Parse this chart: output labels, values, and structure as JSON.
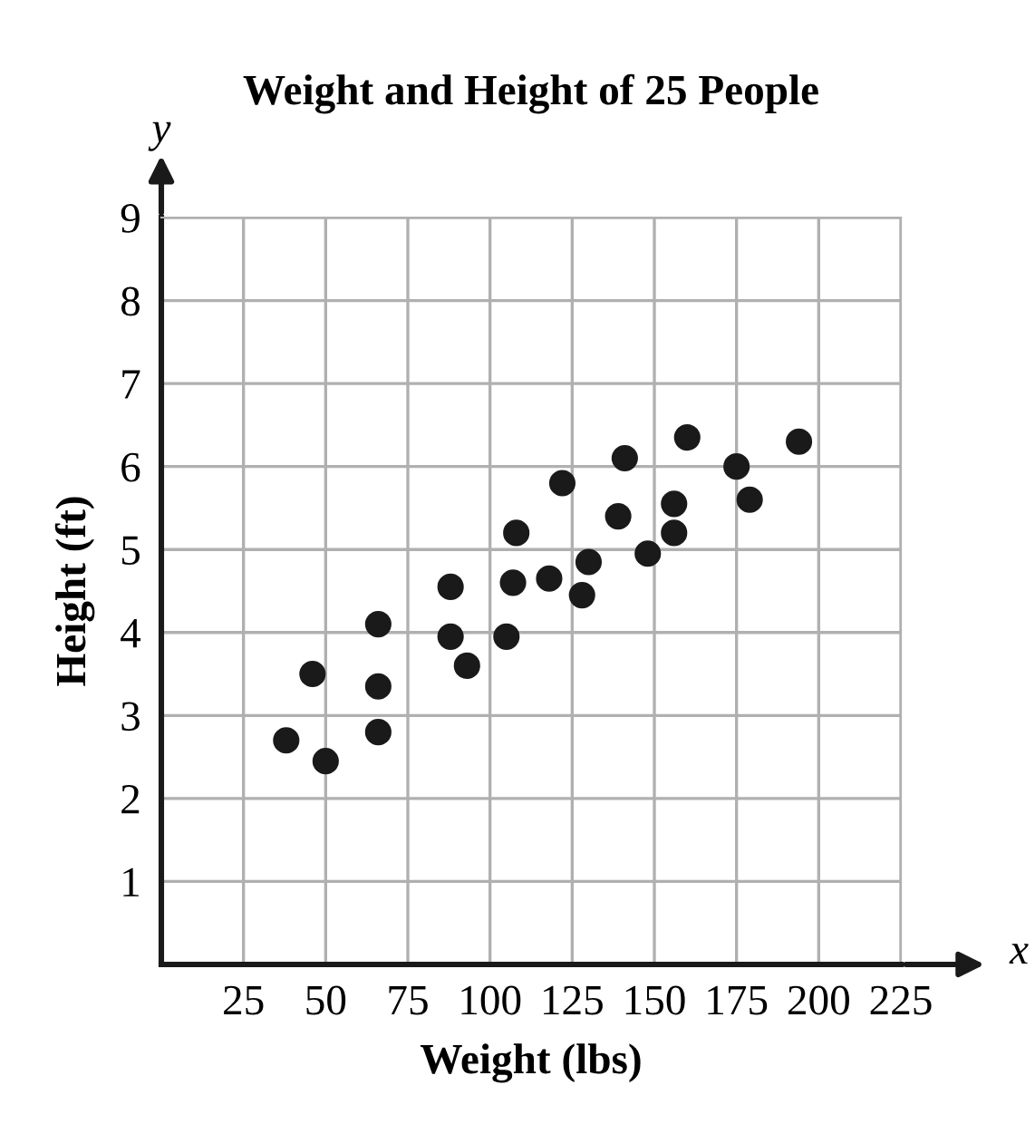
{
  "chart_data": {
    "type": "scatter",
    "title": "Weight and Height of 25 People",
    "xlabel": "Weight (lbs)",
    "ylabel": "Height (ft)",
    "x": [
      38,
      50,
      46,
      66,
      66,
      66,
      88,
      88,
      93,
      105,
      107,
      108,
      118,
      128,
      130,
      122,
      141,
      139,
      148,
      156,
      156,
      160,
      175,
      179,
      194
    ],
    "series": [
      {
        "color": "#1a1a1a",
        "values": [
          2.7,
          2.45,
          3.5,
          2.8,
          3.35,
          4.1,
          4.55,
          3.95,
          3.6,
          3.95,
          4.6,
          5.2,
          4.65,
          4.45,
          4.85,
          5.8,
          6.1,
          5.4,
          4.95,
          5.2,
          5.55,
          6.35,
          6.0,
          5.6,
          6.3
        ]
      }
    ],
    "xlim": [
      0,
      225
    ],
    "ylim": [
      0,
      9
    ],
    "xticks": [
      25,
      50,
      75,
      100,
      125,
      150,
      175,
      200,
      225
    ],
    "yticks": [
      1,
      2,
      3,
      4,
      5,
      6,
      7,
      8,
      9
    ],
    "grid": true,
    "marker": "circle",
    "annotations": [
      "x",
      "y"
    ]
  }
}
